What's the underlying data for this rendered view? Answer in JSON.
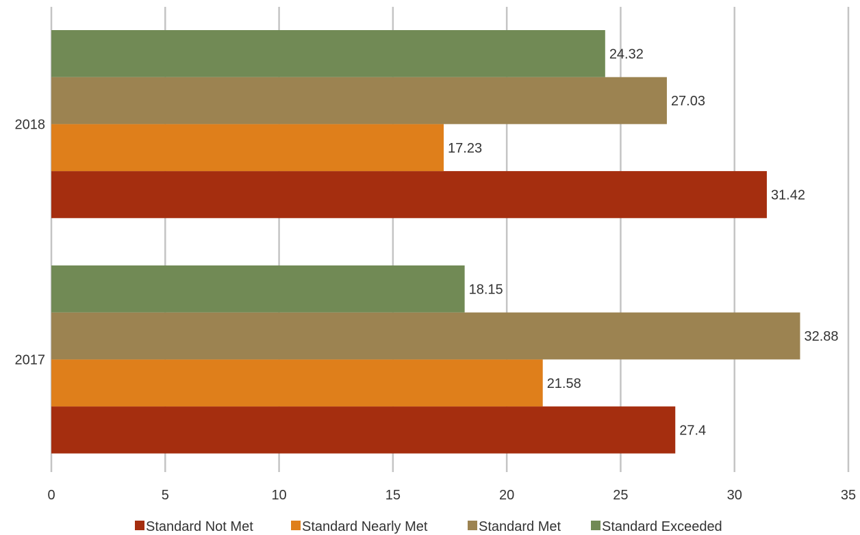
{
  "chart_data": {
    "type": "bar",
    "orientation": "horizontal",
    "title": "",
    "xlabel": "",
    "ylabel": "",
    "xlim": [
      0,
      35
    ],
    "x_ticks": [
      "0",
      "5",
      "10",
      "15",
      "20",
      "25",
      "30",
      "35"
    ],
    "grid": true,
    "legend_position": "bottom",
    "categories": [
      "2018",
      "2017"
    ],
    "series": [
      {
        "name": "Standard Not Met",
        "color": "#a52e0f",
        "values": [
          31.42,
          27.4
        ],
        "labels": [
          "31.42",
          "27.4"
        ]
      },
      {
        "name": "Standard Nearly Met",
        "color": "#df7f1b",
        "values": [
          17.23,
          21.58
        ],
        "labels": [
          "17.23",
          "21.58"
        ]
      },
      {
        "name": "Standard Met",
        "color": "#9c8351",
        "values": [
          27.03,
          32.88
        ],
        "labels": [
          "27.03",
          "32.88"
        ]
      },
      {
        "name": "Standard Exceeded",
        "color": "#718a55",
        "values": [
          24.32,
          18.15
        ],
        "labels": [
          "24.32",
          "18.15"
        ]
      }
    ]
  }
}
